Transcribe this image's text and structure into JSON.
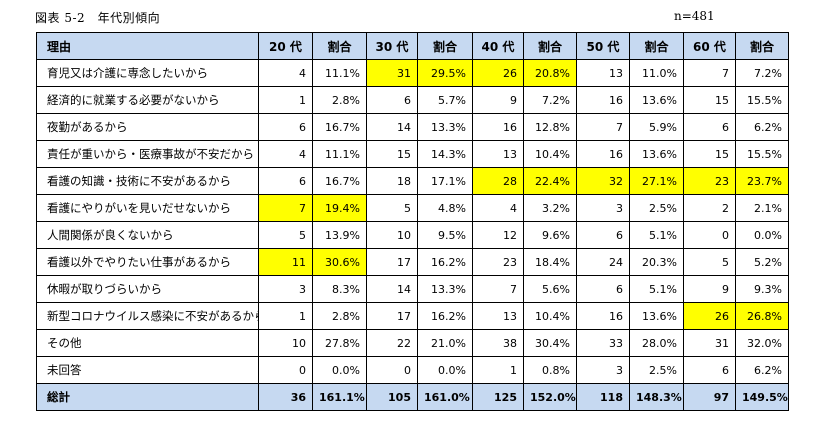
{
  "caption": "図表 5-2　年代別傾向",
  "n_label": "n=481",
  "columns": {
    "reason": "理由",
    "age20": "20 代",
    "age30": "30 代",
    "age40": "40 代",
    "age50": "50 代",
    "age60": "60 代",
    "ratio": "割合"
  },
  "rows": [
    {
      "reason": "育児又は介護に専念したいから",
      "cells": [
        [
          "4",
          "11.1%",
          false
        ],
        [
          "31",
          "29.5%",
          true
        ],
        [
          "26",
          "20.8%",
          true
        ],
        [
          "13",
          "11.0%",
          false
        ],
        [
          "7",
          "7.2%",
          false
        ]
      ]
    },
    {
      "reason": "経済的に就業する必要がないから",
      "cells": [
        [
          "1",
          "2.8%",
          false
        ],
        [
          "6",
          "5.7%",
          false
        ],
        [
          "9",
          "7.2%",
          false
        ],
        [
          "16",
          "13.6%",
          false
        ],
        [
          "15",
          "15.5%",
          false
        ]
      ]
    },
    {
      "reason": "夜勤があるから",
      "cells": [
        [
          "6",
          "16.7%",
          false
        ],
        [
          "14",
          "13.3%",
          false
        ],
        [
          "16",
          "12.8%",
          false
        ],
        [
          "7",
          "5.9%",
          false
        ],
        [
          "6",
          "6.2%",
          false
        ]
      ]
    },
    {
      "reason": "責任が重いから・医療事故が不安だから",
      "cells": [
        [
          "4",
          "11.1%",
          false
        ],
        [
          "15",
          "14.3%",
          false
        ],
        [
          "13",
          "10.4%",
          false
        ],
        [
          "16",
          "13.6%",
          false
        ],
        [
          "15",
          "15.5%",
          false
        ]
      ]
    },
    {
      "reason": "看護の知識・技術に不安があるから",
      "cells": [
        [
          "6",
          "16.7%",
          false
        ],
        [
          "18",
          "17.1%",
          false
        ],
        [
          "28",
          "22.4%",
          true
        ],
        [
          "32",
          "27.1%",
          true
        ],
        [
          "23",
          "23.7%",
          true
        ]
      ]
    },
    {
      "reason": "看護にやりがいを見いだせないから",
      "cells": [
        [
          "7",
          "19.4%",
          true
        ],
        [
          "5",
          "4.8%",
          false
        ],
        [
          "4",
          "3.2%",
          false
        ],
        [
          "3",
          "2.5%",
          false
        ],
        [
          "2",
          "2.1%",
          false
        ]
      ]
    },
    {
      "reason": "人間関係が良くないから",
      "cells": [
        [
          "5",
          "13.9%",
          false
        ],
        [
          "10",
          "9.5%",
          false
        ],
        [
          "12",
          "9.6%",
          false
        ],
        [
          "6",
          "5.1%",
          false
        ],
        [
          "0",
          "0.0%",
          false
        ]
      ]
    },
    {
      "reason": "看護以外でやりたい仕事があるから",
      "cells": [
        [
          "11",
          "30.6%",
          true
        ],
        [
          "17",
          "16.2%",
          false
        ],
        [
          "23",
          "18.4%",
          false
        ],
        [
          "24",
          "20.3%",
          false
        ],
        [
          "5",
          "5.2%",
          false
        ]
      ]
    },
    {
      "reason": "休暇が取りづらいから",
      "cells": [
        [
          "3",
          "8.3%",
          false
        ],
        [
          "14",
          "13.3%",
          false
        ],
        [
          "7",
          "5.6%",
          false
        ],
        [
          "6",
          "5.1%",
          false
        ],
        [
          "9",
          "9.3%",
          false
        ]
      ]
    },
    {
      "reason": "新型コロナウイルス感染に不安があるから",
      "cells": [
        [
          "1",
          "2.8%",
          false
        ],
        [
          "17",
          "16.2%",
          false
        ],
        [
          "13",
          "10.4%",
          false
        ],
        [
          "16",
          "13.6%",
          false
        ],
        [
          "26",
          "26.8%",
          true
        ]
      ]
    },
    {
      "reason": "その他",
      "cells": [
        [
          "10",
          "27.8%",
          false
        ],
        [
          "22",
          "21.0%",
          false
        ],
        [
          "38",
          "30.4%",
          false
        ],
        [
          "33",
          "28.0%",
          false
        ],
        [
          "31",
          "32.0%",
          false
        ]
      ]
    },
    {
      "reason": "未回答",
      "cells": [
        [
          "0",
          "0.0%",
          false
        ],
        [
          "0",
          "0.0%",
          false
        ],
        [
          "1",
          "0.8%",
          false
        ],
        [
          "3",
          "2.5%",
          false
        ],
        [
          "6",
          "6.2%",
          false
        ]
      ]
    }
  ],
  "total": {
    "reason": "総計",
    "cells": [
      [
        "36",
        "161.1%"
      ],
      [
        "105",
        "161.0%"
      ],
      [
        "125",
        "152.0%"
      ],
      [
        "118",
        "148.3%"
      ],
      [
        "97",
        "149.5%"
      ]
    ]
  },
  "colors": {
    "header_bg": "#c6d9f1",
    "highlight": "#ffff00"
  }
}
